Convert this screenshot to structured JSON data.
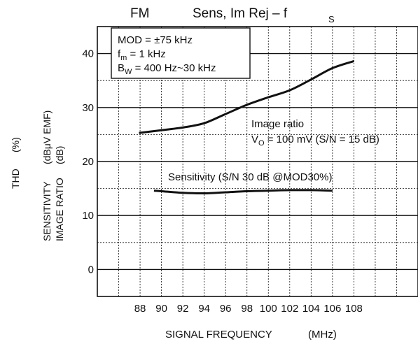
{
  "chart_data": {
    "type": "line",
    "title_left": "FM",
    "title": "Sens, Im Rej – f",
    "title_sub": "S",
    "xlabel": "SIGNAL FREQUENCY",
    "xunit": "(MHz)",
    "ylabel_thd": "THD",
    "ylabel_thd_unit": "(%)",
    "ylabel_sens": "SENSITIVITY",
    "ylabel_sens_unit": "(dBμV EMF)",
    "ylabel_img": "IMAGE RATIO",
    "ylabel_img_unit": "(dB)",
    "x_ticks": [
      88,
      90,
      92,
      94,
      96,
      98,
      100,
      102,
      104,
      106,
      108
    ],
    "x_tick_labels": [
      "88",
      "90",
      "92",
      "94",
      "96",
      "98",
      "100",
      "102",
      "104",
      "106",
      "108"
    ],
    "xlim": [
      84,
      114
    ],
    "y_ticks": [
      0,
      10,
      20,
      30,
      40
    ],
    "y_tick_labels": [
      "0",
      "10",
      "20",
      "30",
      "40"
    ],
    "ylim": [
      -5,
      45
    ],
    "grid": true,
    "conditions": {
      "line1": "MOD = ±75 kHz",
      "line2_main": "f",
      "line2_sub": "m",
      "line2_rest": " = 1 kHz",
      "line3_main": "B",
      "line3_sub": "W",
      "line3_rest": " = 400 Hz~30 kHz"
    },
    "series": [
      {
        "name": "Image ratio",
        "annotation": "Image ratio",
        "annotation2_main": "V",
        "annotation2_sub": "O",
        "annotation2_rest": " = 100 mV (S/N = 15 dB)",
        "x": [
          87.9,
          90,
          92,
          94,
          96,
          98,
          100,
          102,
          104,
          106,
          108
        ],
        "y": [
          25.3,
          25.8,
          26.3,
          27.1,
          28.8,
          30.5,
          31.9,
          33.2,
          35.2,
          37.3,
          38.6
        ]
      },
      {
        "name": "Sensitivity",
        "annotation": "Sensitivity (S/N 30 dB @MOD30%)",
        "x": [
          89.3,
          90,
          92,
          94,
          96,
          98,
          100,
          102,
          104,
          106
        ],
        "y": [
          14.6,
          14.5,
          14.2,
          14.1,
          14.3,
          14.5,
          14.6,
          14.7,
          14.7,
          14.6
        ]
      }
    ]
  }
}
